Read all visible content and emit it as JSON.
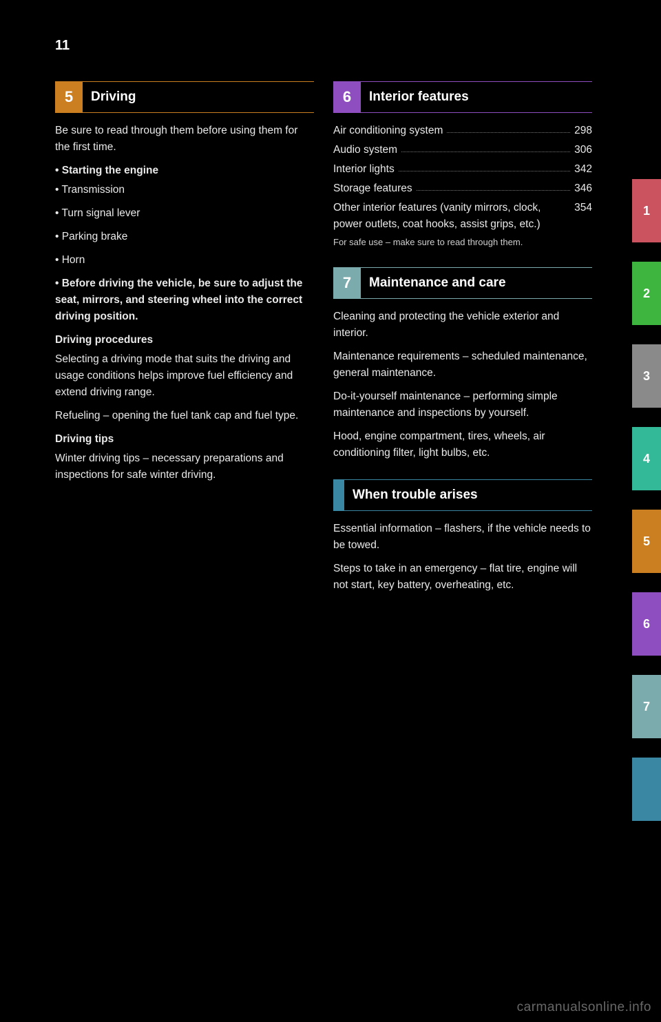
{
  "page_number": "11",
  "colors": {
    "c1": "#cb5360",
    "c2": "#3eb53e",
    "c3": "#8a8a8a",
    "c4": "#33b997",
    "c5": "#cc7f21",
    "c6": "#8e4ec0",
    "c7": "#7cabae",
    "c8": "#3a87a3"
  },
  "left": {
    "s5": {
      "num": "5",
      "title": "Driving",
      "body": [
        "Be sure to read through them before using them for the first time.",
        {
          "sub": "• Starting the engine"
        },
        "• Transmission",
        "• Turn signal lever",
        "• Parking brake",
        "• Horn",
        "",
        {
          "sub": "• Before driving the vehicle, be sure to adjust the seat, mirrors, and steering wheel into the correct driving position."
        },
        "",
        {
          "sub": "Driving procedures"
        },
        "Selecting a driving mode that suits the driving and usage conditions helps improve fuel efficiency and extend driving range.",
        "Refueling – opening the fuel tank cap and fuel type.",
        "",
        {
          "sub": "Driving tips"
        },
        "Winter driving tips – necessary preparations and inspections for safe winter driving."
      ]
    }
  },
  "right": {
    "s6": {
      "num": "6",
      "title": "Interior features",
      "toc": [
        {
          "label": "Air conditioning system",
          "page": "298"
        },
        {
          "label": "Audio system",
          "page": "306"
        },
        {
          "label": "Interior lights",
          "page": "342"
        },
        {
          "label": "Storage features",
          "page": "346"
        },
        {
          "label": "Other interior features (vanity mirrors, clock, power outlets, coat hooks, assist grips, etc.)",
          "page": "354"
        }
      ],
      "after": "For safe use – make sure to read through them."
    },
    "s7": {
      "num": "7",
      "title": "Maintenance and care",
      "body": [
        "Cleaning and protecting the vehicle exterior and interior.",
        "Maintenance requirements – scheduled maintenance, general maintenance.",
        "Do-it-yourself maintenance – performing simple maintenance and inspections by yourself.",
        "Hood, engine compartment, tires, wheels, air conditioning filter, light bulbs, etc."
      ]
    },
    "s8": {
      "num": "",
      "title": "When trouble arises",
      "body": [
        "Essential information – flashers, if the vehicle needs to be towed.",
        "Steps to take in an emergency – flat tire, engine will not start, key battery, overheating, etc."
      ]
    }
  },
  "tabs": [
    {
      "n": "1",
      "color": "c1"
    },
    {
      "n": "2",
      "color": "c2"
    },
    {
      "n": "3",
      "color": "c3"
    },
    {
      "n": "4",
      "color": "c4"
    },
    {
      "n": "5",
      "color": "c5"
    },
    {
      "n": "6",
      "color": "c6"
    },
    {
      "n": "7",
      "color": "c7"
    },
    {
      "n": "",
      "color": "c8"
    }
  ],
  "watermark": "carmanualsonline.info"
}
